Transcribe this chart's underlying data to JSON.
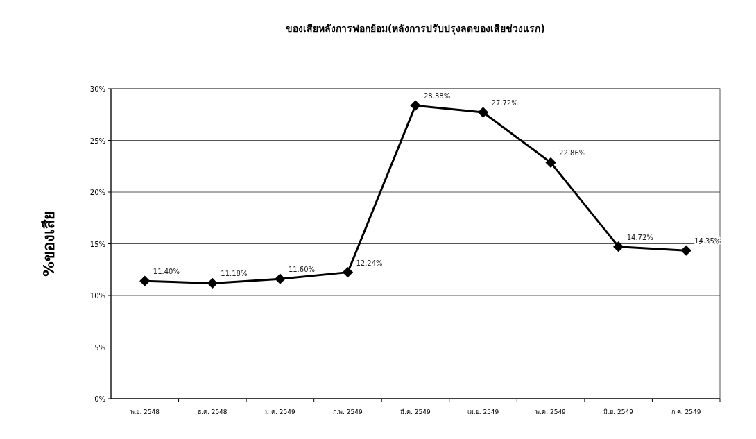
{
  "chart_data": {
    "type": "line",
    "title": "ของเสียหลังการฟอกย้อม(หลังการปรับปรุงลดของเสียช่วงแรก)",
    "ylabel": "%ของเสีย",
    "categories": [
      "พ.ย. 2548",
      "ธ.ค. 2548",
      "ม.ค. 2549",
      "ก.พ. 2549",
      "มี.ค. 2549",
      "เม.ย. 2549",
      "พ.ค. 2549",
      "มิ.ย. 2549",
      "ก.ค. 2549"
    ],
    "series": [
      {
        "color": "#000000",
        "values": [
          11.4,
          11.18,
          11.6,
          12.24,
          28.38,
          27.72,
          22.86,
          14.72,
          14.35
        ],
        "value_labels": [
          "11.40%",
          "11.18%",
          "11.60%",
          "12.24%",
          "28.38%",
          "27.72%",
          "22.86%",
          "14.72%",
          "14.35%"
        ]
      }
    ],
    "ylim": [
      0,
      30
    ],
    "yticks": [
      {
        "value": 0,
        "label": "0%"
      },
      {
        "value": 5,
        "label": "5%"
      },
      {
        "value": 10,
        "label": "10%"
      },
      {
        "value": 15,
        "label": "15%"
      },
      {
        "value": 20,
        "label": "20%"
      },
      {
        "value": 25,
        "label": "25%"
      },
      {
        "value": 30,
        "label": "30%"
      }
    ],
    "grid": "y",
    "marker": "diamond",
    "line_style": "solid"
  }
}
